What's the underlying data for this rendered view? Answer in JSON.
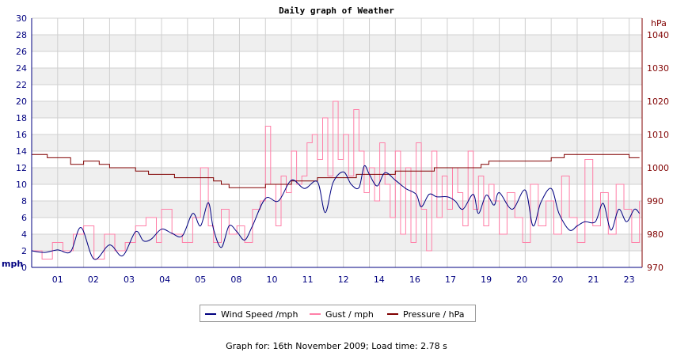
{
  "chart_data": {
    "type": "line",
    "title": "Daily graph of Weather",
    "left_axis": {
      "unit": "mph",
      "ylim": [
        0,
        30
      ],
      "ticks": [
        "0",
        "2",
        "4",
        "6",
        "8",
        "10",
        "12",
        "14",
        "16",
        "18",
        "20",
        "22",
        "24",
        "26",
        "28",
        "30"
      ]
    },
    "right_axis": {
      "unit": "hPa",
      "ylim": [
        970,
        1045
      ],
      "ticks": [
        "970",
        "980",
        "990",
        "1000",
        "1010",
        "1020",
        "1030",
        "1040"
      ]
    },
    "x_tick_labels": [
      "01",
      "02",
      "03",
      "04",
      "05",
      "08",
      "10",
      "11",
      "12",
      "14",
      "16",
      "17",
      "19",
      "20",
      "20",
      "21",
      "23"
    ],
    "xlim": [
      0,
      23.5
    ],
    "grid": true,
    "legend_position": "bottom",
    "series": [
      {
        "name": "Wind Speed /mph",
        "color": "#000080",
        "axis": "left",
        "x": [
          0,
          0.5,
          1,
          1.5,
          1.9,
          2.4,
          3.0,
          3.5,
          4.0,
          4.3,
          4.6,
          5.0,
          5.4,
          5.8,
          6.2,
          6.5,
          6.8,
          7.0,
          7.3,
          7.6,
          7.9,
          8.2,
          8.5,
          9.0,
          9.5,
          10.0,
          10.5,
          11.0,
          11.3,
          11.6,
          12.0,
          12.3,
          12.6,
          12.8,
          13.0,
          13.3,
          13.6,
          14.0,
          14.4,
          14.8,
          15.0,
          15.3,
          15.6,
          16.0,
          16.3,
          16.6,
          17.0,
          17.2,
          17.5,
          17.8,
          18.0,
          18.5,
          19.0,
          19.3,
          19.6,
          20.0,
          20.3,
          20.7,
          21.0,
          21.3,
          21.7,
          22.0,
          22.3,
          22.6,
          22.9,
          23.2,
          23.4
        ],
        "values": [
          2.0,
          1.8,
          2.1,
          1.9,
          4.8,
          1.0,
          2.7,
          1.4,
          4.3,
          3.2,
          3.4,
          4.6,
          4.1,
          3.8,
          6.5,
          5.0,
          7.8,
          4.6,
          2.4,
          5.0,
          4.3,
          3.3,
          5.0,
          8.3,
          8.0,
          10.5,
          9.5,
          10.3,
          6.6,
          10.2,
          11.5,
          10.0,
          9.6,
          12.2,
          11.2,
          9.8,
          11.4,
          10.5,
          9.5,
          8.8,
          7.3,
          8.8,
          8.5,
          8.5,
          8.0,
          7.0,
          8.8,
          6.5,
          8.7,
          7.5,
          9.0,
          7.0,
          9.3,
          5.0,
          7.8,
          9.5,
          6.5,
          4.5,
          5.0,
          5.5,
          5.5,
          7.7,
          4.5,
          7.0,
          5.5,
          7.0,
          6.5
        ]
      },
      {
        "name": "Gust / mph",
        "color": "#ff80a8",
        "axis": "left",
        "x": [
          0,
          0.4,
          0.8,
          1.2,
          1.6,
          2.0,
          2.4,
          2.8,
          3.2,
          3.6,
          4.0,
          4.4,
          4.8,
          5.0,
          5.4,
          5.8,
          6.2,
          6.5,
          6.8,
          7.0,
          7.3,
          7.6,
          7.9,
          8.2,
          8.5,
          8.8,
          9.0,
          9.2,
          9.4,
          9.6,
          9.8,
          10.0,
          10.2,
          10.4,
          10.6,
          10.8,
          11.0,
          11.2,
          11.4,
          11.6,
          11.8,
          12.0,
          12.2,
          12.4,
          12.6,
          12.8,
          13.0,
          13.2,
          13.4,
          13.6,
          13.8,
          14.0,
          14.2,
          14.4,
          14.6,
          14.8,
          15.0,
          15.2,
          15.4,
          15.6,
          15.8,
          16.0,
          16.2,
          16.4,
          16.6,
          16.8,
          17.0,
          17.2,
          17.4,
          17.6,
          17.8,
          18.0,
          18.3,
          18.6,
          18.9,
          19.2,
          19.5,
          19.8,
          20.1,
          20.4,
          20.7,
          21.0,
          21.3,
          21.6,
          21.9,
          22.2,
          22.5,
          22.8,
          23.1,
          23.4
        ],
        "values": [
          2,
          1,
          3,
          2,
          4,
          5,
          1,
          4,
          2,
          3,
          5,
          6,
          3,
          7,
          4,
          3,
          6,
          12,
          5,
          3,
          7,
          4,
          5,
          3,
          7,
          8,
          17,
          10,
          5,
          11,
          9,
          14,
          10,
          11,
          15,
          16,
          13,
          18,
          11,
          20,
          13,
          16,
          11,
          19,
          14,
          9,
          12,
          8,
          15,
          10,
          6,
          14,
          4,
          12,
          3,
          15,
          7,
          2,
          14,
          6,
          11,
          7,
          12,
          9,
          5,
          14,
          7,
          11,
          5,
          10,
          8,
          4,
          9,
          6,
          3,
          10,
          5,
          8,
          4,
          11,
          6,
          3,
          13,
          5,
          9,
          4,
          10,
          7,
          3,
          8
        ]
      },
      {
        "name": "Pressure / hPa",
        "color": "#800000",
        "axis": "right",
        "x": [
          0,
          0.6,
          1.0,
          1.5,
          2.0,
          2.6,
          3.0,
          3.6,
          4.0,
          4.5,
          5.0,
          5.5,
          6.0,
          6.5,
          6.9,
          7.0,
          7.3,
          7.6,
          8.0,
          8.5,
          9.0,
          9.5,
          10.0,
          10.5,
          11.0,
          11.5,
          12.0,
          12.5,
          13.0,
          13.5,
          14.0,
          14.5,
          15.0,
          15.5,
          16.0,
          16.5,
          17.0,
          17.3,
          17.6,
          18.0,
          18.5,
          19.0,
          19.5,
          20.0,
          20.5,
          21.0,
          21.5,
          22.0,
          22.5,
          23.0,
          23.4
        ],
        "values": [
          1004,
          1003,
          1003,
          1001,
          1002,
          1001,
          1000,
          1000,
          999,
          998,
          998,
          997,
          997,
          997,
          997,
          996,
          995,
          994,
          994,
          994,
          995,
          995,
          996,
          996,
          997,
          997,
          997,
          998,
          998,
          998,
          999,
          999,
          999,
          1000,
          1000,
          1000,
          1000,
          1001,
          1002,
          1002,
          1002,
          1002,
          1002,
          1003,
          1004,
          1004,
          1004,
          1004,
          1004,
          1003,
          1003
        ]
      }
    ]
  },
  "legend": {
    "wind_label": "Wind Speed /mph",
    "gust_label": "Gust / mph",
    "pressure_label": "Pressure / hPa"
  },
  "footer": {
    "text": "Graph for: 16th November 2009; Load time: 2.78 s"
  }
}
